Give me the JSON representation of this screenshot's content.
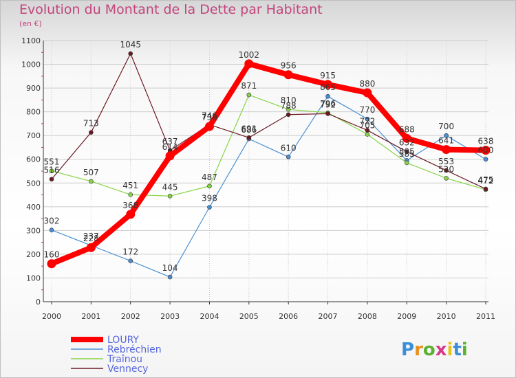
{
  "header": {
    "title": "Evolution du Montant de la Dette par Habitant",
    "unit": "(en €)"
  },
  "logo": {
    "text": "Proxiti"
  },
  "chart_data": {
    "type": "line",
    "title": "Evolution du Montant de la Dette par Habitant",
    "ylabel": "(en €)",
    "xlabel": "",
    "x": [
      "2000",
      "2001",
      "2002",
      "2003",
      "2004",
      "2005",
      "2006",
      "2007",
      "2008",
      "2009",
      "2010",
      "2011"
    ],
    "ylim": [
      0,
      1100
    ],
    "yticks": [
      0,
      100,
      200,
      300,
      400,
      500,
      600,
      700,
      800,
      900,
      1000,
      1100
    ],
    "grid": true,
    "legend_position": "bottom-left",
    "series": [
      {
        "name": "LOURY",
        "color": "#ff0000",
        "values": [
          160,
          228,
          368,
          614,
          738,
          1002,
          956,
          915,
          880,
          688,
          641,
          638
        ]
      },
      {
        "name": "Rebréchien",
        "color": "#4a8fd4",
        "values": [
          302,
          237,
          172,
          104,
          398,
          686,
          610,
          865,
          770,
          595,
          700,
          600
        ]
      },
      {
        "name": "Traînou",
        "color": "#88d448",
        "values": [
          551,
          507,
          451,
          445,
          487,
          871,
          810,
          796,
          705,
          585,
          520,
          472
        ]
      },
      {
        "name": "Vennecy",
        "color": "#6b1a24",
        "values": [
          516,
          713,
          1045,
          637,
          746,
          691,
          788,
          792,
          722,
          632,
          553,
          475
        ]
      }
    ]
  }
}
